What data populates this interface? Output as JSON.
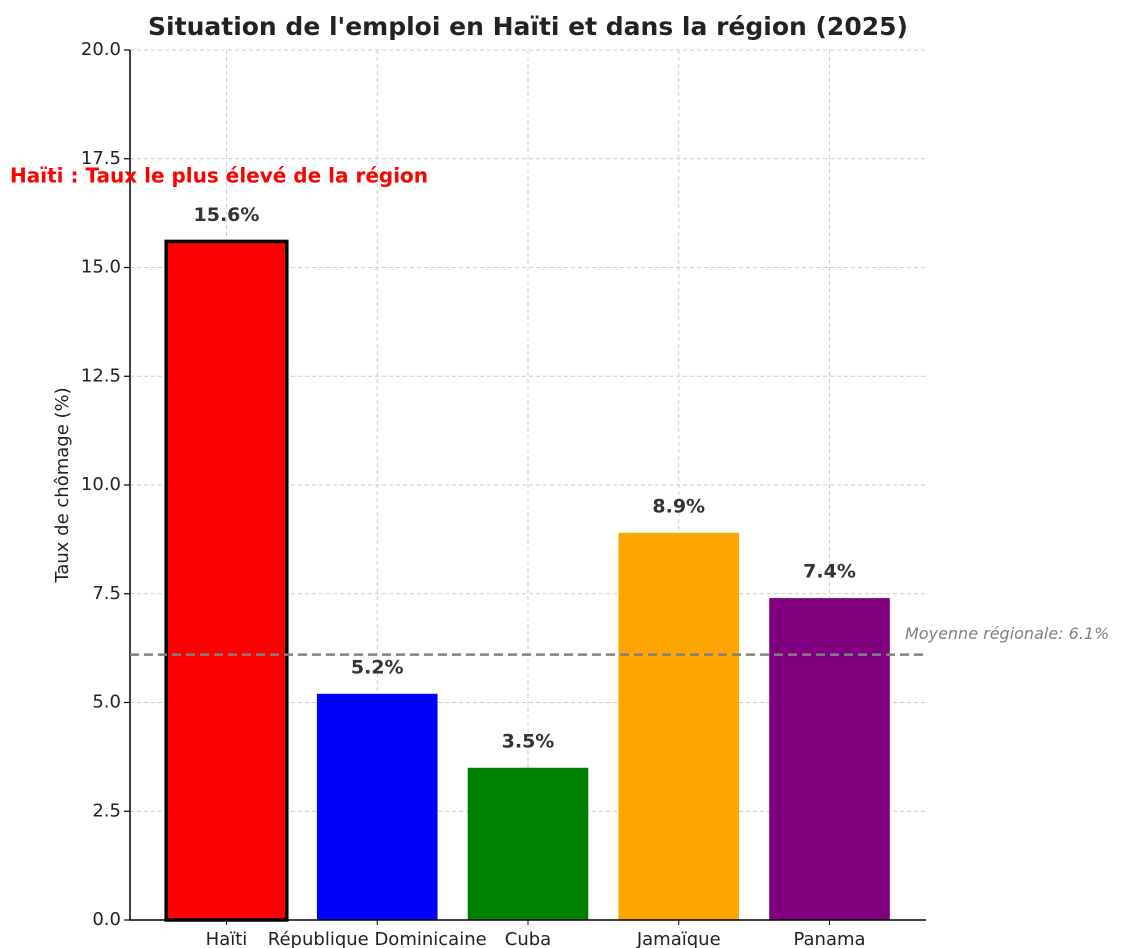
{
  "chart_data": {
    "type": "bar",
    "title": "Situation de l'emploi en Haïti et dans la région (2025)",
    "ylabel": "Taux de chômage (%)",
    "categories": [
      "Haïti",
      "République Dominicaine",
      "Cuba",
      "Jamaïque",
      "Panama"
    ],
    "values": [
      15.6,
      5.2,
      3.5,
      8.9,
      7.4
    ],
    "value_labels": [
      "15.6%",
      "5.2%",
      "3.5%",
      "8.9%",
      "7.4%"
    ],
    "colors": [
      "#ff0000",
      "#0000ff",
      "#008000",
      "#ffa500",
      "#800080"
    ],
    "edgecolors": [
      "#000000",
      null,
      null,
      null,
      null
    ],
    "ylim": [
      0,
      20
    ],
    "yticks": [
      {
        "value": 0,
        "label": "0.0"
      },
      2.5,
      {
        "value": 5,
        "label": "5.0"
      },
      7.5,
      {
        "value": 10,
        "label": "10.0"
      },
      12.5,
      {
        "value": 15,
        "label": "15.0"
      },
      17.5,
      {
        "value": 20,
        "label": "20.0"
      }
    ],
    "grid": true,
    "reference_line": {
      "value": 6.1,
      "label": "Moyenne régionale: 6.1%",
      "color": "#808080"
    },
    "annotation": {
      "text": "Haïti : Taux le plus élevé de la région",
      "color": "#ff0000"
    }
  }
}
